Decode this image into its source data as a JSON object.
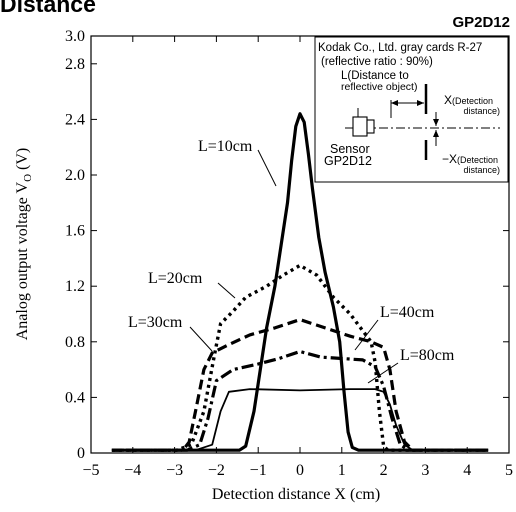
{
  "page_title": "Distance",
  "part_number": "GP2D12",
  "chart_data": {
    "type": "line",
    "xlabel": "Detection distance X (cm)",
    "ylabel": "Analog output voltage VO (V)",
    "ylabel_main": "Analog output voltage V",
    "ylabel_sub": "O",
    "ylabel_tail": " (V)",
    "xlim": [
      -5,
      5
    ],
    "ylim": [
      0,
      3.0
    ],
    "x_ticks": [
      -5,
      -4,
      -3,
      -2,
      -1,
      0,
      1,
      2,
      3,
      4,
      5
    ],
    "x_tick_labels": [
      "−5",
      "−4",
      "−3",
      "−2",
      "−1",
      "0",
      "1",
      "2",
      "3",
      "4",
      "5"
    ],
    "y_ticks": [
      0,
      0.4,
      0.8,
      1.2,
      1.6,
      2.0,
      2.4,
      2.8,
      3.0
    ],
    "y_tick_labels": [
      "0",
      "0.4",
      "0.8",
      "1.2",
      "1.6",
      "2.0",
      "2.4",
      "2.8",
      "3.0"
    ],
    "grid": false,
    "series": [
      {
        "name": "L=10cm",
        "style": "solid-thick",
        "points": [
          [
            -4.5,
            0.02
          ],
          [
            -1.45,
            0.02
          ],
          [
            -1.3,
            0.05
          ],
          [
            -1.1,
            0.3
          ],
          [
            -0.95,
            0.6
          ],
          [
            -0.8,
            0.9
          ],
          [
            -0.6,
            1.2
          ],
          [
            -0.45,
            1.5
          ],
          [
            -0.3,
            1.8
          ],
          [
            -0.2,
            2.1
          ],
          [
            -0.1,
            2.35
          ],
          [
            0,
            2.44
          ],
          [
            0.1,
            2.38
          ],
          [
            0.2,
            2.15
          ],
          [
            0.3,
            1.9
          ],
          [
            0.45,
            1.55
          ],
          [
            0.6,
            1.3
          ],
          [
            0.8,
            1.05
          ],
          [
            0.95,
            0.8
          ],
          [
            1.05,
            0.45
          ],
          [
            1.15,
            0.15
          ],
          [
            1.25,
            0.04
          ],
          [
            1.4,
            0.02
          ],
          [
            4.5,
            0.02
          ]
        ]
      },
      {
        "name": "L=20cm",
        "style": "dotted",
        "points": [
          [
            -4.5,
            0.02
          ],
          [
            -2.95,
            0.02
          ],
          [
            -2.6,
            0.06
          ],
          [
            -2.3,
            0.3
          ],
          [
            -2.05,
            0.7
          ],
          [
            -1.9,
            0.93
          ],
          [
            -1.6,
            1.02
          ],
          [
            -1.3,
            1.12
          ],
          [
            -0.8,
            1.2
          ],
          [
            -0.4,
            1.28
          ],
          [
            0,
            1.35
          ],
          [
            0.4,
            1.28
          ],
          [
            0.8,
            1.12
          ],
          [
            1.2,
            1.0
          ],
          [
            1.5,
            0.88
          ],
          [
            1.7,
            0.8
          ],
          [
            1.8,
            0.65
          ],
          [
            1.9,
            0.3
          ],
          [
            2.0,
            0.05
          ],
          [
            2.1,
            0.02
          ],
          [
            4.5,
            0.02
          ]
        ]
      },
      {
        "name": "L=30cm",
        "style": "dashed",
        "points": [
          [
            -4.5,
            0.02
          ],
          [
            -2.8,
            0.02
          ],
          [
            -2.65,
            0.08
          ],
          [
            -2.5,
            0.3
          ],
          [
            -2.3,
            0.6
          ],
          [
            -2.1,
            0.72
          ],
          [
            -1.7,
            0.78
          ],
          [
            -1.2,
            0.85
          ],
          [
            -0.6,
            0.9
          ],
          [
            0,
            0.96
          ],
          [
            0.6,
            0.9
          ],
          [
            1.2,
            0.84
          ],
          [
            1.7,
            0.8
          ],
          [
            2.0,
            0.76
          ],
          [
            2.15,
            0.6
          ],
          [
            2.3,
            0.3
          ],
          [
            2.5,
            0.08
          ],
          [
            2.7,
            0.02
          ],
          [
            4.5,
            0.02
          ]
        ]
      },
      {
        "name": "L=40cm",
        "style": "dashdot",
        "points": [
          [
            -4.5,
            0.02
          ],
          [
            -2.7,
            0.02
          ],
          [
            -2.4,
            0.06
          ],
          [
            -2.2,
            0.25
          ],
          [
            -2.0,
            0.52
          ],
          [
            -1.6,
            0.6
          ],
          [
            -1.0,
            0.64
          ],
          [
            -0.5,
            0.68
          ],
          [
            0,
            0.73
          ],
          [
            0.5,
            0.69
          ],
          [
            1.0,
            0.68
          ],
          [
            1.5,
            0.67
          ],
          [
            1.8,
            0.62
          ],
          [
            2.0,
            0.48
          ],
          [
            2.2,
            0.25
          ],
          [
            2.4,
            0.06
          ],
          [
            2.6,
            0.02
          ],
          [
            4.5,
            0.02
          ]
        ]
      },
      {
        "name": "L=80cm",
        "style": "solid-thin",
        "points": [
          [
            -4.5,
            0.02
          ],
          [
            -2.5,
            0.02
          ],
          [
            -2.1,
            0.06
          ],
          [
            -1.9,
            0.3
          ],
          [
            -1.7,
            0.44
          ],
          [
            -1.2,
            0.46
          ],
          [
            0,
            0.45
          ],
          [
            1.2,
            0.46
          ],
          [
            1.8,
            0.46
          ],
          [
            2.0,
            0.44
          ],
          [
            2.15,
            0.35
          ],
          [
            2.3,
            0.2
          ],
          [
            2.5,
            0.06
          ],
          [
            2.7,
            0.02
          ],
          [
            4.5,
            0.02
          ]
        ]
      }
    ],
    "series_labels": [
      {
        "text": "L=10cm",
        "series": 0
      },
      {
        "text": "L=20cm",
        "series": 1
      },
      {
        "text": "L=30cm",
        "series": 2
      },
      {
        "text": "L=40cm",
        "series": 3
      },
      {
        "text": "L=80cm",
        "series": 4
      }
    ]
  },
  "inset": {
    "line1": "Kodak Co., Ltd. gray cards R-27",
    "line2": "(reflective ratio : 90%)",
    "l_label_1": "L(Distance to",
    "l_label_2": "reflective object)",
    "x_plus_main": "X",
    "x_plus_sub": "(Detection",
    "x_plus_sub2": "distance)",
    "x_minus_main": "−X",
    "x_minus_sub": "(Detection",
    "x_minus_sub2": "distance)",
    "sensor_1": "Sensor",
    "sensor_2": "GP2D12"
  }
}
